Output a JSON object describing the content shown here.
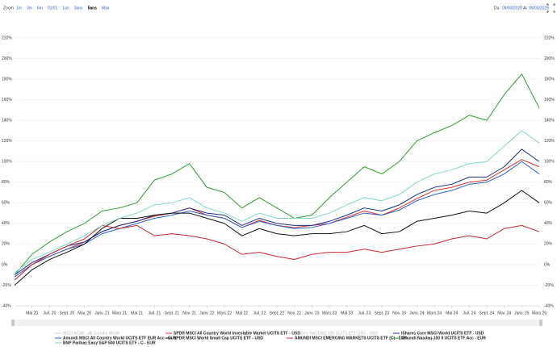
{
  "toolbar": {
    "zoom_label": "Zoom",
    "ranges": [
      {
        "label": "1m",
        "active": false
      },
      {
        "label": "3m",
        "active": false
      },
      {
        "label": "6m",
        "active": false
      },
      {
        "label": "01/01",
        "active": false
      },
      {
        "label": "1an",
        "active": false
      },
      {
        "label": "3ans",
        "active": false
      },
      {
        "label": "5ans",
        "active": true
      },
      {
        "label": "Max",
        "active": false
      }
    ],
    "from_label": "Du",
    "from": "09/03/2020",
    "to_label": "Au",
    "to": "09/03/2025"
  },
  "chart_data": {
    "type": "line",
    "categories": [
      null,
      "Mai 20",
      "Juil. 20",
      "Sept. 20",
      "Nov. 20",
      "Janv. 21",
      "Mars 21",
      "Mai 21",
      "Juil. 21",
      "Sept. 21",
      "Nov. 21",
      "Janv. 22",
      "Mars 22",
      "Mai 22",
      "Juil. 22",
      "Sept. 22",
      "Nov. 22",
      "Janv. 23",
      "Mars 23",
      "Mai 23",
      "Juil. 23",
      "Sept. 23",
      "Nov. 23",
      "Janv. 24",
      "Mars 24",
      "Mai 24",
      "Juil. 24",
      "Sept. 24",
      "Nov. 24",
      "Janv. 25",
      "Mars 25"
    ],
    "ylim": [
      -40,
      220
    ],
    "yticks": [
      {
        "value": -40,
        "label": "-40%"
      },
      {
        "value": -20,
        "label": "-20%"
      },
      {
        "value": 0,
        "label": "0%"
      },
      {
        "value": 20,
        "label": "20%"
      },
      {
        "value": 40,
        "label": "40%"
      },
      {
        "value": 60,
        "label": "60%"
      },
      {
        "value": 80,
        "label": "80%"
      },
      {
        "value": 100,
        "label": "100%"
      },
      {
        "value": 120,
        "label": "120%"
      },
      {
        "value": 140,
        "label": "140%"
      },
      {
        "value": 160,
        "label": "160%"
      },
      {
        "value": 180,
        "label": "180%"
      },
      {
        "value": 200,
        "label": "200%"
      },
      {
        "value": 220,
        "label": "220%"
      }
    ],
    "grid": true,
    "series": [
      {
        "name": "MSCI ACWI - All Country World",
        "color": "#9ecbe0",
        "visible": false
      },
      {
        "name": "SPDR MSCI All Country World Investable Market UCITS ETF - USD",
        "color": "#e0342c",
        "visible": true,
        "values": [
          -12,
          0,
          8,
          15,
          22,
          32,
          38,
          42,
          47,
          50,
          55,
          48,
          45,
          36,
          43,
          38,
          36,
          38,
          40,
          46,
          52,
          48,
          55,
          64,
          72,
          75,
          80,
          82,
          92,
          102,
          95
        ]
      },
      {
        "name": "iShares NASDAQ 100 UCITS ETF (DE) - USD",
        "color": "#f2b02e",
        "visible": false
      },
      {
        "name": "iShares Core MSCI World UCITS ETF - USD",
        "color": "#1a2f8c",
        "visible": true,
        "values": [
          -10,
          2,
          10,
          18,
          22,
          32,
          38,
          42,
          48,
          50,
          55,
          50,
          48,
          38,
          45,
          40,
          38,
          38,
          42,
          48,
          55,
          52,
          58,
          68,
          75,
          78,
          85,
          85,
          95,
          112,
          100
        ]
      },
      {
        "name": "Amundi MSCI All Country World UCITS ETF EUR Acc - EUR",
        "color": "#2f62c8",
        "visible": true,
        "values": [
          -12,
          0,
          8,
          15,
          20,
          30,
          35,
          40,
          45,
          48,
          52,
          48,
          45,
          36,
          42,
          38,
          35,
          36,
          40,
          45,
          50,
          48,
          53,
          62,
          68,
          72,
          78,
          80,
          88,
          100,
          88
        ]
      },
      {
        "name": "SPDR MSCI World Small Cap UCITS ETF - USD",
        "color": "#111111",
        "visible": true,
        "values": [
          -20,
          -5,
          5,
          12,
          20,
          35,
          45,
          45,
          48,
          50,
          50,
          45,
          40,
          28,
          35,
          30,
          28,
          30,
          30,
          32,
          38,
          30,
          32,
          42,
          45,
          48,
          52,
          50,
          60,
          72,
          60
        ]
      },
      {
        "name": "AMUNDI MSCI EMERGING MARKETS UCITS ETF (C) - EUR",
        "color": "#c8282e",
        "visible": true,
        "values": [
          -15,
          0,
          10,
          18,
          25,
          38,
          35,
          38,
          28,
          30,
          28,
          25,
          20,
          10,
          12,
          8,
          5,
          10,
          12,
          12,
          15,
          12,
          15,
          18,
          20,
          25,
          28,
          25,
          35,
          38,
          32
        ]
      },
      {
        "name": "Amundi Nasdaq-100 II UCITS ETF Acc - EUR",
        "color": "#2ca02c",
        "visible": true,
        "values": [
          -10,
          10,
          22,
          32,
          40,
          52,
          55,
          60,
          82,
          88,
          98,
          75,
          70,
          55,
          65,
          55,
          45,
          48,
          65,
          80,
          95,
          88,
          100,
          120,
          128,
          135,
          145,
          140,
          165,
          185,
          152
        ]
      },
      {
        "name": "BNP Paribas Easy S&P 500 UCITS ETF - C - EUR",
        "color": "#7fd6cc",
        "visible": true,
        "values": [
          -8,
          5,
          12,
          20,
          28,
          38,
          45,
          50,
          58,
          60,
          65,
          55,
          50,
          42,
          50,
          45,
          45,
          45,
          50,
          58,
          65,
          62,
          68,
          80,
          88,
          92,
          98,
          100,
          115,
          130,
          118
        ]
      }
    ]
  }
}
